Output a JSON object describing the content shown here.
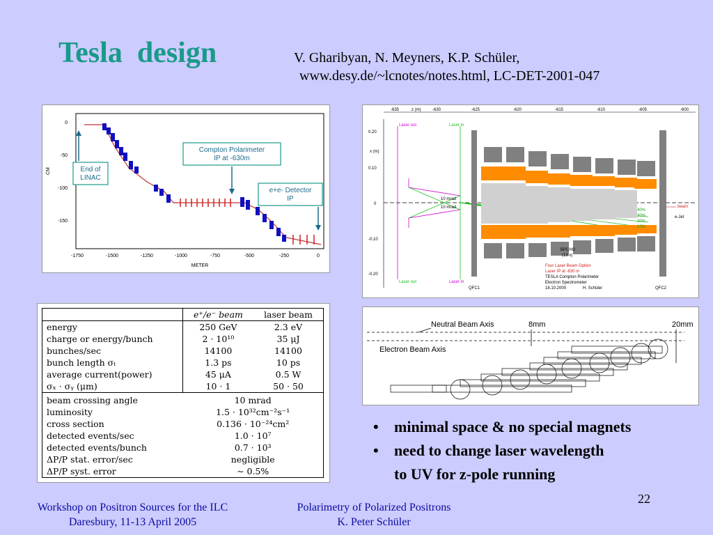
{
  "slide": {
    "title": "Tesla  design",
    "authors_line1": "V. Gharibyan, N. Meyners, K.P. Schüler,",
    "authors_line2": "www.desy.de/~lcnotes/notes.html, LC-DET-2001-047",
    "page_number": "22"
  },
  "beamline_figure": {
    "y_axis_label": "CM",
    "x_axis_label": "METER",
    "x_ticks": [
      "-1750",
      "-1500",
      "-1250",
      "-1000",
      "-750",
      "-500",
      "-250",
      "0"
    ],
    "y_ticks": [
      "0",
      "-50",
      "-100",
      "-150"
    ],
    "label_linac": [
      "End of",
      "LINAC"
    ],
    "label_polarimeter": [
      "Compton Polarimeter",
      "IP at -630m"
    ],
    "label_ip": [
      "e+e- Detector",
      "IP"
    ]
  },
  "spectrometer_figure": {
    "top_ticks": [
      "-635",
      "z (m)",
      "-630",
      "-625",
      "-620",
      "-615",
      "-610",
      "-605",
      "-600"
    ],
    "y_axis_label": "x (m)",
    "y_ticks": [
      "0.20",
      "0.10",
      "0",
      "-0.10",
      "-0.20"
    ],
    "laser_labels": [
      "Laser out",
      "Laser in",
      "Laser out",
      "Laser in"
    ],
    "angle_labels": [
      "10 mrad",
      "10 mrad"
    ],
    "right_labels": [
      "beam",
      "e-Jet"
    ],
    "percent_labels": [
      "40%",
      "30%",
      "20%",
      "10%"
    ],
    "magnet_label": [
      "BPCHG",
      "(13 x)"
    ],
    "caption_red": [
      "Four Laser Beam Option",
      "Laser IP at -630 m"
    ],
    "caption": [
      "TESLA Compton Polarimeter",
      "Electron Spectrometer",
      "18.10.2000",
      "H. Schüler"
    ],
    "bottom_labels": [
      "QFC1",
      "QFC2"
    ]
  },
  "params_table": {
    "headers": [
      "e⁺/e⁻ beam",
      "laser beam"
    ],
    "rows": [
      [
        "energy",
        "250 GeV",
        "2.3 eV"
      ],
      [
        "charge or energy/bunch",
        "2 · 10¹⁰",
        "35 μJ"
      ],
      [
        "bunches/sec",
        "14100",
        "14100"
      ],
      [
        "bunch length σₜ",
        "1.3 ps",
        "10 ps"
      ],
      [
        "average current(power)",
        "45 μA",
        "0.5 W"
      ],
      [
        "σₓ · σᵧ (μm)",
        "10 · 1",
        "50 · 50"
      ]
    ],
    "rows2": [
      [
        "beam crossing angle",
        "10 mrad"
      ],
      [
        "luminosity",
        "1.5 · 10³²cm⁻²s⁻¹"
      ],
      [
        "cross section",
        "0.136 · 10⁻²⁴cm²"
      ],
      [
        "detected events/sec",
        "1.0 · 10⁷"
      ],
      [
        "detected events/bunch",
        "0.7 · 10³"
      ],
      [
        "ΔP/P stat. error/sec",
        "negligible"
      ],
      [
        "ΔP/P syst. error",
        "∼ 0.5%"
      ]
    ]
  },
  "detector_figure": {
    "label_neutral": "Neutral Beam Axis",
    "label_electron": "Electron Beam Axis",
    "label_8mm": "8mm",
    "label_20mm": "20mm"
  },
  "bullets": {
    "items": [
      "minimal space & no special magnets",
      "need to change laser wavelength"
    ],
    "continuation": "to UV for z-pole running"
  },
  "footer": {
    "left_line1": "Workshop on Positron Sources for the ILC",
    "left_line2": "Daresbury, 11-13 April 2005",
    "mid_line1": "Polarimetry of Polarized Positrons",
    "mid_line2": "K. Peter Schüler"
  },
  "colors": {
    "title": "#1a9a8a",
    "footer": "#0a0aa0",
    "background": "#ccccff",
    "magnet_orange": "#ff8c00",
    "laser_magenta": "#d000d0",
    "laser_green": "#20c020"
  }
}
